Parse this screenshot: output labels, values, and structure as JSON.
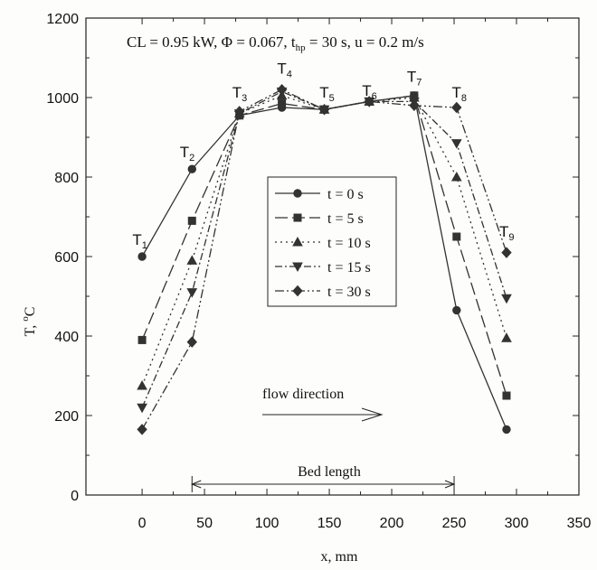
{
  "chart_data": {
    "type": "line",
    "title": "CL = 0.95 kW, Φ = 0.067, t",
    "title_sub": "hp",
    "title_rest": " = 30 s, u = 0.2 m/s",
    "xlabel": "x, mm",
    "ylabel_main": "T, ",
    "ylabel_sup": "o",
    "ylabel_end": "C",
    "xlim": [
      -45,
      350
    ],
    "ylim": [
      0,
      1200
    ],
    "x_ticks": [
      0,
      50,
      100,
      150,
      200,
      250,
      300,
      350
    ],
    "y_ticks": [
      0,
      200,
      400,
      600,
      800,
      1000,
      1200
    ],
    "grid": false,
    "legend_position": "center",
    "x": [
      0,
      40,
      78,
      112,
      146,
      182,
      218,
      252,
      292
    ],
    "series": [
      {
        "name": "t = 0 s",
        "marker": "circle",
        "dash": "",
        "values": [
          600,
          820,
          955,
          975,
          970,
          990,
          1005,
          465,
          165
        ]
      },
      {
        "name": "t = 5 s",
        "marker": "square",
        "dash": "14 5",
        "values": [
          390,
          690,
          955,
          985,
          970,
          990,
          1005,
          650,
          250
        ]
      },
      {
        "name": "t = 10 s",
        "marker": "triangle",
        "dash": "2 4",
        "values": [
          275,
          590,
          960,
          1005,
          970,
          990,
          1000,
          800,
          395
        ]
      },
      {
        "name": "t = 15 s",
        "marker": "tri-down",
        "dash": "8 3 2 3",
        "values": [
          220,
          510,
          960,
          1015,
          970,
          990,
          990,
          885,
          495
        ]
      },
      {
        "name": "t = 30 s",
        "marker": "diamond",
        "dash": "10 3 2 3 2 3",
        "values": [
          165,
          385,
          965,
          1020,
          970,
          990,
          980,
          975,
          610
        ]
      }
    ],
    "point_labels": [
      {
        "name": "T",
        "sub": "1",
        "x": -2,
        "y": 630
      },
      {
        "name": "T",
        "sub": "2",
        "x": 36,
        "y": 850
      },
      {
        "name": "T",
        "sub": "3",
        "x": 78,
        "y": 1000
      },
      {
        "name": "T",
        "sub": "4",
        "x": 114,
        "y": 1060
      },
      {
        "name": "T",
        "sub": "5",
        "x": 148,
        "y": 1000
      },
      {
        "name": "T",
        "sub": "6",
        "x": 182,
        "y": 1005
      },
      {
        "name": "T",
        "sub": "7",
        "x": 218,
        "y": 1040
      },
      {
        "name": "T",
        "sub": "8",
        "x": 254,
        "y": 1000
      },
      {
        "name": "T",
        "sub": "9",
        "x": 292,
        "y": 650
      }
    ],
    "annotations": {
      "flow_direction": "flow direction",
      "bed_length": "Bed length",
      "bed_start": 40,
      "bed_end": 250
    }
  }
}
